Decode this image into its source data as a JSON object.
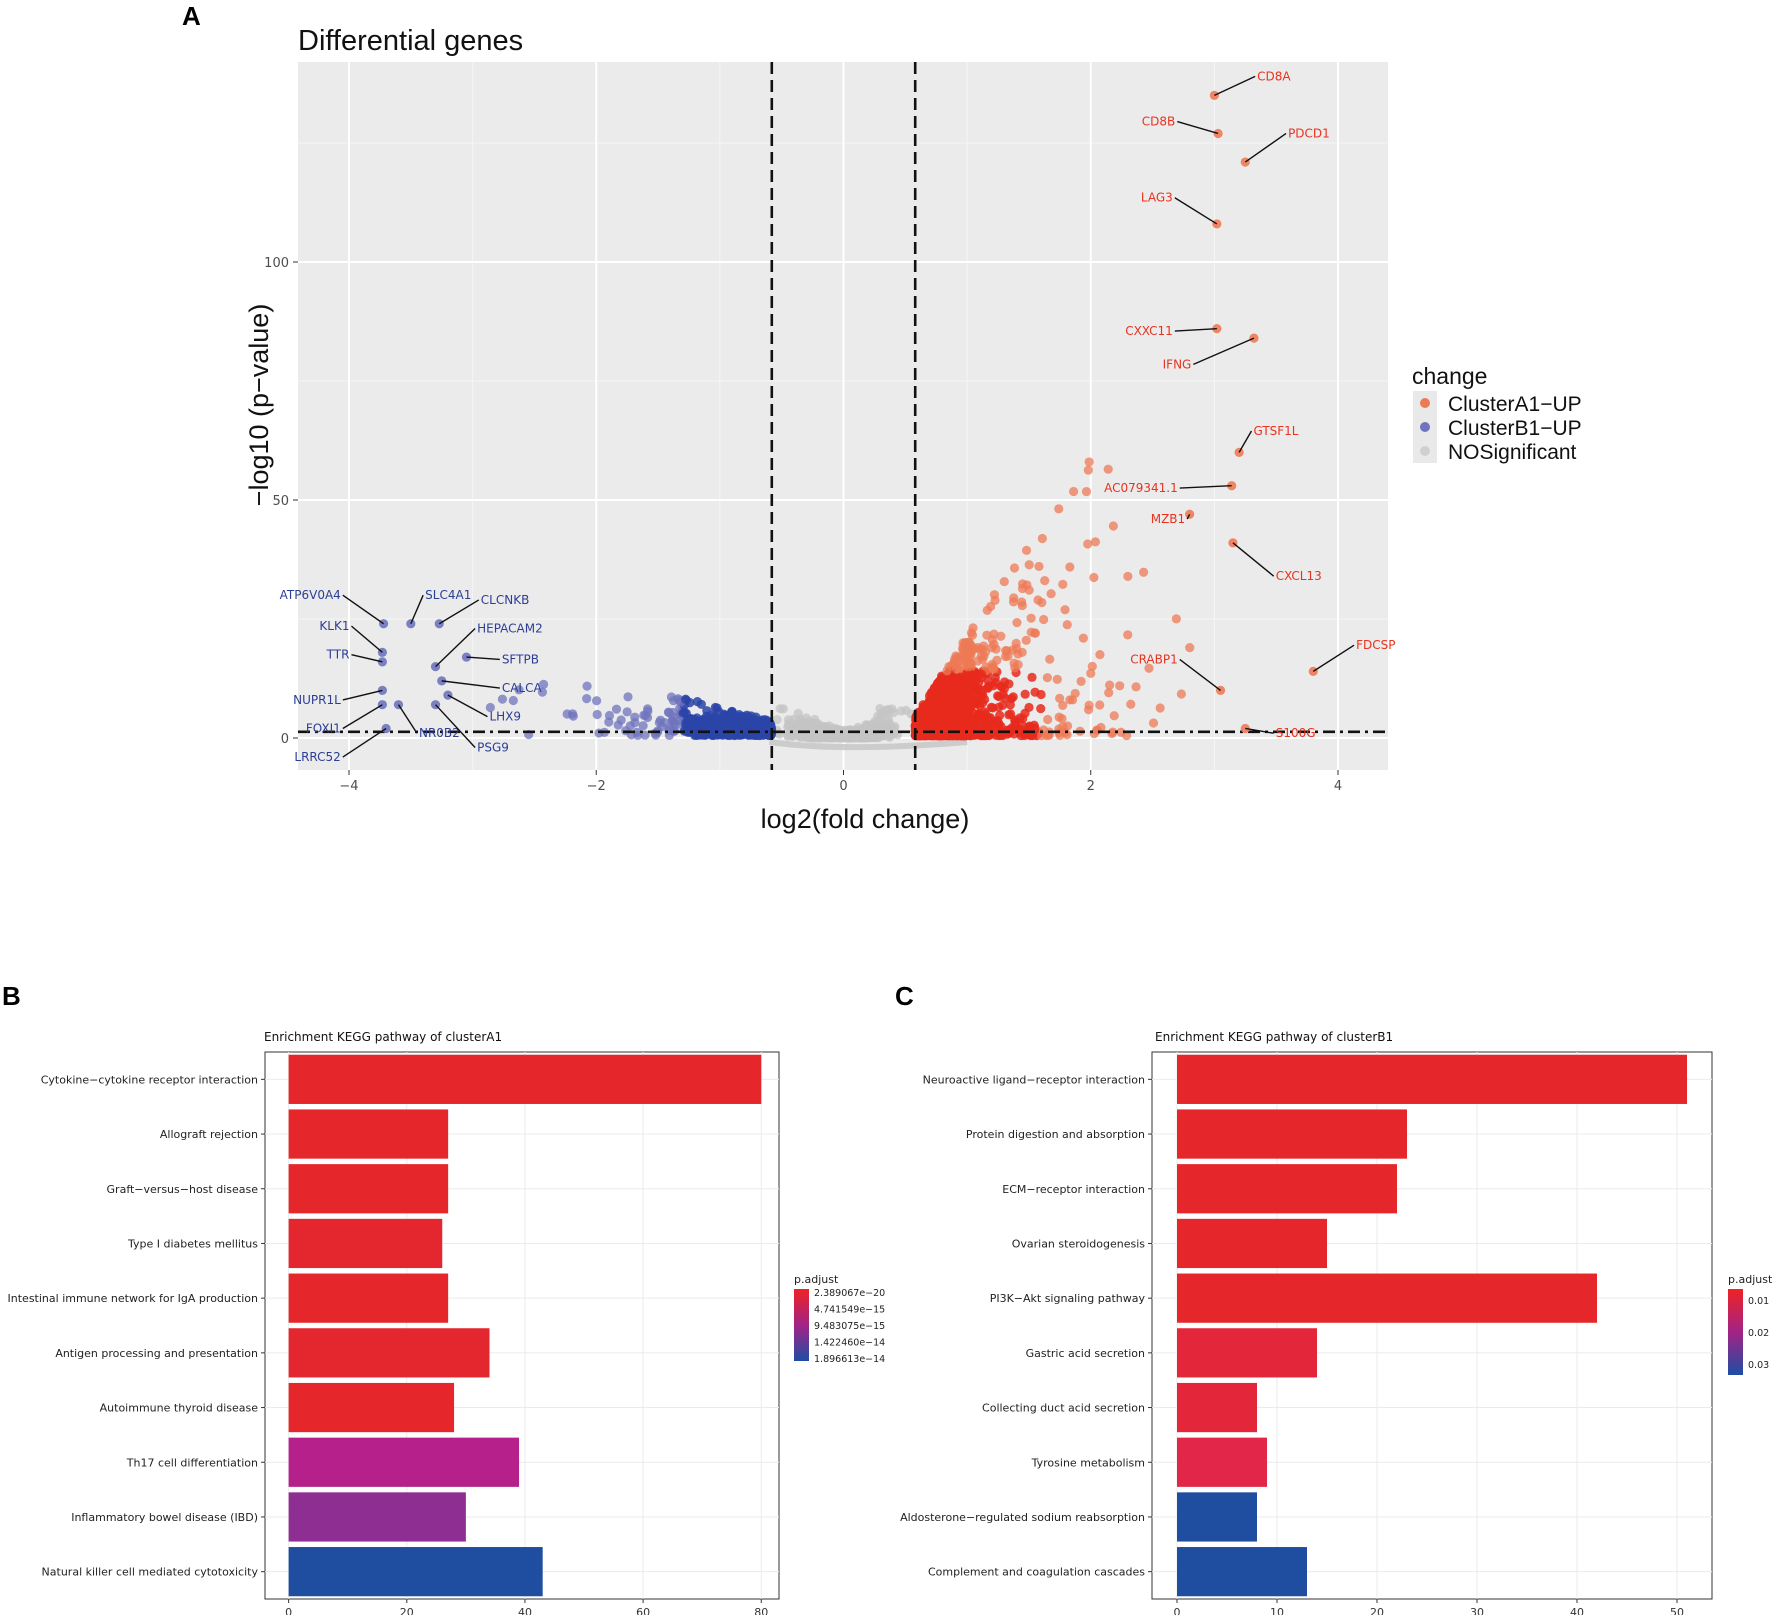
{
  "panel_letters": {
    "a": "A",
    "b": "B",
    "c": "C"
  },
  "colors": {
    "up": "#ee7a55",
    "down": "#6f74bd",
    "ns": "#c4c4c4",
    "dense_up": "#e82a1c",
    "dense_down": "#2a44a8",
    "bar_high": "#e5262b",
    "bar_mid": "#b5208a",
    "bar_low": "#1f4ea1"
  },
  "chart_data": [
    {
      "type": "scatter",
      "title": "Differential genes",
      "xlabel": "log2(fold change)",
      "ylabel": "−log10 (p−value)",
      "xlim": [
        -4.4,
        4.4
      ],
      "ylim": [
        -6,
        142
      ],
      "xticks": [
        -4,
        -2,
        0,
        2,
        4
      ],
      "xtick_labels": [
        "−4",
        "−2",
        "0",
        "2",
        "4"
      ],
      "yticks": [
        0,
        50,
        100
      ],
      "ytick_labels": [
        "0",
        "50",
        "100"
      ],
      "thresholds": {
        "fc": [
          -0.58,
          0.58
        ],
        "p": 1.3
      },
      "legend": {
        "title": "change",
        "items": [
          {
            "label": "ClusterA1−UP",
            "color": "#ee7a55"
          },
          {
            "label": "ClusterB1−UP",
            "color": "#6f74bd"
          },
          {
            "label": "NOSignificant",
            "color": "#d0d0d0"
          }
        ]
      },
      "labeled_up": [
        {
          "gene": "CD8A",
          "x": 3.0,
          "y": 135,
          "lx": 3.33,
          "ly": 139
        },
        {
          "gene": "CD8B",
          "x": 3.03,
          "y": 127,
          "lx": 2.7,
          "ly": 129.5
        },
        {
          "gene": "PDCD1",
          "x": 3.25,
          "y": 121,
          "lx": 3.58,
          "ly": 127
        },
        {
          "gene": "LAG3",
          "x": 3.02,
          "y": 108,
          "lx": 2.68,
          "ly": 113.5
        },
        {
          "gene": "CXXC11",
          "x": 3.02,
          "y": 86,
          "lx": 2.68,
          "ly": 85.5
        },
        {
          "gene": "IFNG",
          "x": 3.32,
          "y": 84,
          "lx": 2.83,
          "ly": 78.5
        },
        {
          "gene": "GTSF1L",
          "x": 3.2,
          "y": 60,
          "lx": 3.3,
          "ly": 64.5
        },
        {
          "gene": "AC079341.1",
          "x": 3.14,
          "y": 53,
          "lx": 2.72,
          "ly": 52.5
        },
        {
          "gene": "MZB1",
          "x": 2.8,
          "y": 47,
          "lx": 2.78,
          "ly": 46
        },
        {
          "gene": "CXCL13",
          "x": 3.15,
          "y": 41,
          "lx": 3.48,
          "ly": 34
        },
        {
          "gene": "FDCSP",
          "x": 3.8,
          "y": 14,
          "lx": 4.13,
          "ly": 19.5
        },
        {
          "gene": "CRABP1",
          "x": 3.05,
          "y": 10,
          "lx": 2.72,
          "ly": 16.5
        },
        {
          "gene": "S100G",
          "x": 3.25,
          "y": 2,
          "lx": 3.48,
          "ly": 1
        }
      ],
      "labeled_down": [
        {
          "gene": "ATP6V0A4",
          "x": -3.72,
          "y": 24,
          "lx": -4.05,
          "ly": 30
        },
        {
          "gene": "SLC4A1",
          "x": -3.5,
          "y": 24,
          "lx": -3.4,
          "ly": 30
        },
        {
          "gene": "CLCNKB",
          "x": -3.27,
          "y": 24,
          "lx": -2.95,
          "ly": 29
        },
        {
          "gene": "KLK1",
          "x": -3.73,
          "y": 18,
          "lx": -3.98,
          "ly": 23.5
        },
        {
          "gene": "HEPACAM2",
          "x": -3.3,
          "y": 15,
          "lx": -2.98,
          "ly": 23
        },
        {
          "gene": "TTR",
          "x": -3.73,
          "y": 16,
          "lx": -3.98,
          "ly": 17.5
        },
        {
          "gene": "SFTPB",
          "x": -3.05,
          "y": 17,
          "lx": -2.78,
          "ly": 16.5
        },
        {
          "gene": "CALCA",
          "x": -3.25,
          "y": 12,
          "lx": -2.78,
          "ly": 10.5
        },
        {
          "gene": "NUPR1L",
          "x": -3.73,
          "y": 10,
          "lx": -4.05,
          "ly": 8
        },
        {
          "gene": "LHX9",
          "x": -3.2,
          "y": 9,
          "lx": -2.88,
          "ly": 4.5
        },
        {
          "gene": "FOXI1",
          "x": -3.73,
          "y": 7,
          "lx": -4.05,
          "ly": 2
        },
        {
          "gene": "NR0B2",
          "x": -3.6,
          "y": 7,
          "lx": -3.45,
          "ly": 1
        },
        {
          "gene": "PSG9",
          "x": -3.3,
          "y": 7,
          "lx": -2.98,
          "ly": -2
        },
        {
          "gene": "LRRC52",
          "x": -3.7,
          "y": 2,
          "lx": -4.05,
          "ly": -4
        }
      ]
    },
    {
      "type": "bar",
      "orientation": "horizontal",
      "title": "Enrichment KEGG pathway of clusterA1",
      "categories": [
        "Cytokine−cytokine receptor interaction",
        "Allograft rejection",
        "Graft−versus−host disease",
        "Type I diabetes mellitus",
        "Intestinal immune network for IgA production",
        "Antigen processing and presentation",
        "Autoimmune thyroid disease",
        "Th17 cell differentiation",
        "Inflammatory bowel disease (IBD)",
        "Natural killer cell mediated cytotoxicity"
      ],
      "values": [
        80,
        27,
        27,
        26,
        27,
        34,
        28,
        39,
        30,
        43
      ],
      "colors": [
        "#e5262b",
        "#e5262b",
        "#e5262b",
        "#e4262e",
        "#e5262b",
        "#e4262e",
        "#e5262b",
        "#b5208a",
        "#8e2e92",
        "#1f4ea1"
      ],
      "xlim": [
        -4,
        83
      ],
      "xticks": [
        0,
        20,
        40,
        60,
        80
      ],
      "xtick_labels": [
        "0",
        "20",
        "40",
        "60",
        "80"
      ],
      "colorbar": {
        "title": "p.adjust",
        "labels": [
          "2.389067e−20",
          "4.741549e−15",
          "9.483075e−15",
          "1.422460e−14",
          "1.896613e−14"
        ]
      }
    },
    {
      "type": "bar",
      "orientation": "horizontal",
      "title": "Enrichment KEGG pathway of clusterB1",
      "categories": [
        "Neuroactive ligand−receptor interaction",
        "Protein digestion and absorption",
        "ECM−receptor interaction",
        "Ovarian steroidogenesis",
        "PI3K−Akt signaling pathway",
        "Gastric acid secretion",
        "Collecting duct acid secretion",
        "Tyrosine metabolism",
        "Aldosterone−regulated sodium reabsorption",
        "Complement and coagulation cascades"
      ],
      "values": [
        51,
        23,
        22,
        15,
        42,
        14,
        8,
        9,
        8,
        13
      ],
      "colors": [
        "#e5262b",
        "#e5262b",
        "#e5262b",
        "#e5262b",
        "#e5262b",
        "#e3263a",
        "#e3263a",
        "#e1264a",
        "#1f4ea1",
        "#1f4ea1"
      ],
      "xlim": [
        -2.5,
        53.5
      ],
      "xticks": [
        0,
        10,
        20,
        30,
        40,
        50
      ],
      "xtick_labels": [
        "0",
        "10",
        "20",
        "30",
        "40",
        "50"
      ],
      "colorbar": {
        "title": "p.adjust",
        "labels": [
          "0.01",
          "0.02",
          "0.03"
        ]
      }
    }
  ]
}
